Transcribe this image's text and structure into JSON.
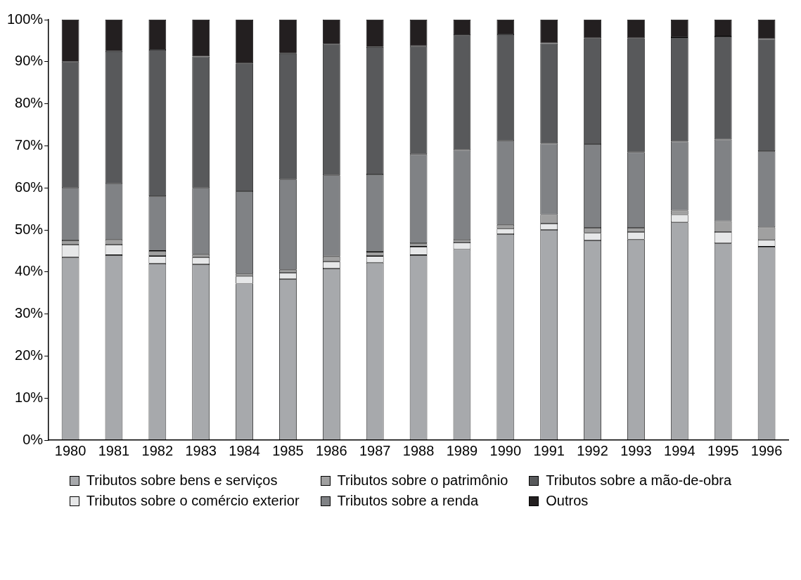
{
  "chart_data": {
    "type": "bar",
    "stacked": true,
    "categories": [
      "1980",
      "1981",
      "1982",
      "1983",
      "1984",
      "1985",
      "1986",
      "1987",
      "1988",
      "1989",
      "1990",
      "1991",
      "1992",
      "1993",
      "1994",
      "1995",
      "1996"
    ],
    "series": [
      {
        "name": "Tributos sobre bens e serviços",
        "color": "#a7a9ac",
        "values": [
          43.5,
          44,
          42,
          41.8,
          37.2,
          38.3,
          40.8,
          42.2,
          44,
          45.4,
          49,
          50,
          47.5,
          47.7,
          51.8,
          46.8,
          46
        ]
      },
      {
        "name": "Tributos sobre o comércio exterior",
        "color": "#e6e7e8",
        "values": [
          3,
          2.5,
          1.8,
          1.7,
          1.8,
          1.5,
          1.7,
          1.6,
          2,
          1.6,
          1.3,
          1.5,
          1.8,
          1.8,
          1.8,
          2.7,
          1.6
        ]
      },
      {
        "name": "Tributos sobre o patrimônio",
        "color": "#a0a0a0",
        "values": [
          1,
          1.2,
          1.2,
          0.7,
          0.6,
          0.7,
          1.2,
          1,
          0.8,
          0.6,
          0.9,
          2.1,
          1.2,
          1,
          1,
          2.6,
          3
        ]
      },
      {
        "name": "Tributos sobre a renda",
        "color": "#808285",
        "values": [
          12.5,
          13.3,
          13,
          15.8,
          19.6,
          21.5,
          19.3,
          18.4,
          21.2,
          21.4,
          20,
          16.9,
          19.9,
          18,
          16.4,
          19.4,
          18.1
        ]
      },
      {
        "name": "Tributos sobre a mão-de-obra",
        "color": "#58595b",
        "values": [
          30,
          31.5,
          34.8,
          31.2,
          30.4,
          30,
          31.2,
          30.3,
          25.7,
          27.3,
          25.3,
          23.9,
          25.2,
          27.1,
          24.8,
          24.5,
          26.7
        ]
      },
      {
        "name": "Outros",
        "color": "#231f20",
        "values": [
          10,
          7.5,
          7.2,
          8.8,
          10.4,
          8,
          5.8,
          6.5,
          6.3,
          3.7,
          3.5,
          5.6,
          4.4,
          4.4,
          4.2,
          4,
          4.6
        ]
      }
    ],
    "ylim": [
      0,
      100
    ],
    "yticks": [
      {
        "value": 0,
        "label": "0%"
      },
      {
        "value": 10,
        "label": "10%"
      },
      {
        "value": 20,
        "label": "20%"
      },
      {
        "value": 30,
        "label": "30%"
      },
      {
        "value": 40,
        "label": "40%"
      },
      {
        "value": 50,
        "label": "50%"
      },
      {
        "value": 60,
        "label": "60%"
      },
      {
        "value": 70,
        "label": "70%"
      },
      {
        "value": 80,
        "label": "80%"
      },
      {
        "value": 90,
        "label": "90%"
      },
      {
        "value": 100,
        "label": "100%"
      }
    ],
    "grid": false,
    "legend": "bottom"
  }
}
